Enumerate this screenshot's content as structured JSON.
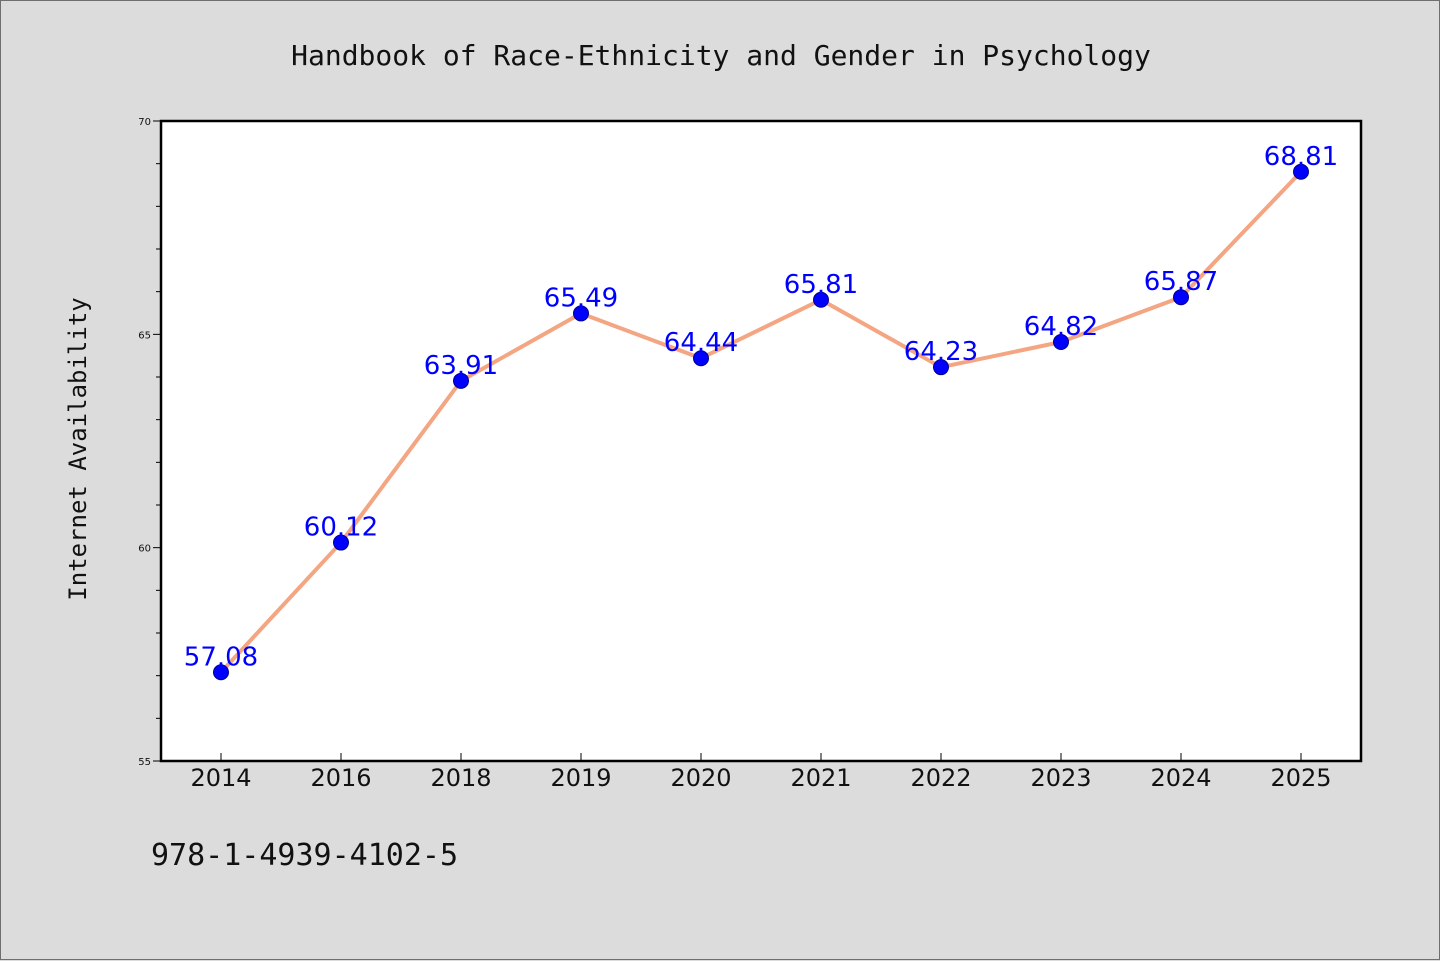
{
  "chart_data": {
    "type": "line",
    "title": "Handbook of Race-Ethnicity and Gender in Psychology",
    "xlabel": "",
    "ylabel": "Internet Availability",
    "categories": [
      "2014",
      "2016",
      "2018",
      "2019",
      "2020",
      "2021",
      "2022",
      "2023",
      "2024",
      "2025"
    ],
    "values": [
      57.08,
      60.12,
      63.91,
      65.49,
      64.44,
      65.81,
      64.23,
      64.82,
      65.87,
      68.81
    ],
    "data_labels": [
      "57.08",
      "60.12",
      "63.91",
      "65.49",
      "64.44",
      "65.81",
      "64.23",
      "64.82",
      "65.87",
      "68.81"
    ],
    "ylim": [
      55,
      70
    ],
    "yticks": [
      55,
      60,
      65,
      70
    ],
    "grid": false,
    "line_color": "#f4a582",
    "marker_color": "#0000ff",
    "label_color": "#0000ff"
  },
  "footer": {
    "isbn": "978-1-4939-4102-5"
  }
}
